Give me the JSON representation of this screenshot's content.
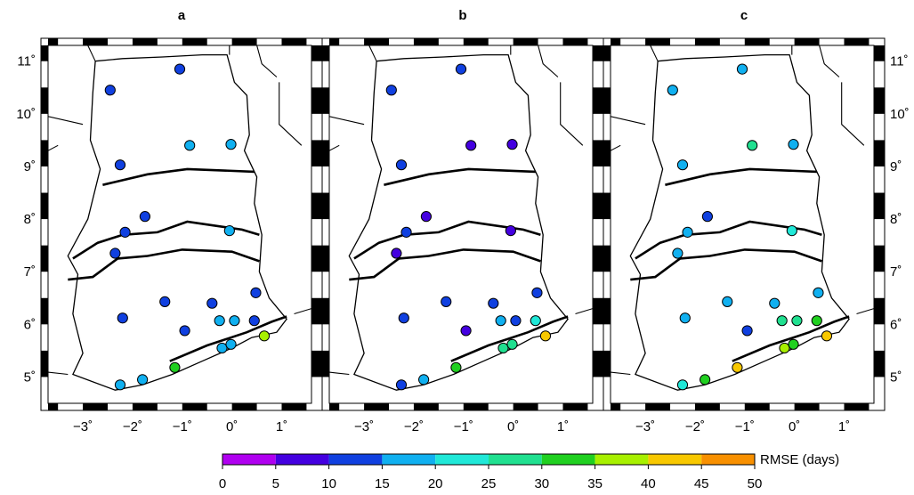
{
  "panels": [
    {
      "label": "a",
      "station_rmse_days": [
        12,
        12,
        17,
        16,
        12,
        11,
        12,
        12,
        16,
        12,
        13,
        12,
        13,
        12,
        17,
        17,
        14,
        30,
        19,
        19,
        39,
        17,
        19
      ]
    },
    {
      "label": "b",
      "station_rmse_days": [
        12,
        12,
        7,
        7,
        12,
        9,
        12,
        8,
        7,
        12,
        13,
        12,
        13,
        8,
        17,
        14,
        22,
        30,
        29,
        29,
        43,
        13,
        17
      ]
    },
    {
      "label": "c",
      "station_rmse_days": [
        17,
        17,
        25,
        19,
        17,
        12,
        17,
        17,
        23,
        17,
        17,
        17,
        17,
        12,
        27,
        27,
        30,
        42,
        35,
        34,
        42,
        21,
        33
      ]
    }
  ],
  "axes": {
    "x_ticks": [
      "−3˚",
      "−2˚",
      "−1˚",
      "0˚",
      "1˚"
    ],
    "y_ticks": [
      "11˚",
      "10˚",
      "9˚",
      "8˚",
      "7˚",
      "6˚",
      "5˚"
    ]
  },
  "colorbar": {
    "title": "RMSE (days)",
    "tick_labels": [
      "0",
      "5",
      "10",
      "15",
      "20",
      "25",
      "30",
      "35",
      "40",
      "45",
      "50"
    ],
    "colors": [
      "#b000f0",
      "#4400e0",
      "#1040e0",
      "#10b0f0",
      "#20e8d8",
      "#20e090",
      "#20d020",
      "#a8f000",
      "#f8c800",
      "#f89000",
      "#f04010"
    ]
  },
  "chart_data": {
    "type": "scatter",
    "x_label": "",
    "y_label": "",
    "xlim": [
      -3.7,
      1.6
    ],
    "ylim": [
      4.5,
      11.3
    ],
    "stations": [
      {
        "lon": -1.05,
        "lat": 10.85
      },
      {
        "lon": -2.45,
        "lat": 10.45
      },
      {
        "lon": -0.85,
        "lat": 9.4
      },
      {
        "lon": -0.02,
        "lat": 9.42
      },
      {
        "lon": -2.25,
        "lat": 9.03
      },
      {
        "lon": -1.75,
        "lat": 8.05
      },
      {
        "lon": -2.15,
        "lat": 7.75
      },
      {
        "lon": -2.35,
        "lat": 7.35
      },
      {
        "lon": -0.05,
        "lat": 7.78
      },
      {
        "lon": -1.35,
        "lat": 6.43
      },
      {
        "lon": -0.4,
        "lat": 6.4
      },
      {
        "lon": 0.48,
        "lat": 6.6
      },
      {
        "lon": -2.2,
        "lat": 6.12
      },
      {
        "lon": -0.95,
        "lat": 5.88
      },
      {
        "lon": -0.25,
        "lat": 6.07
      },
      {
        "lon": 0.05,
        "lat": 6.07
      },
      {
        "lon": 0.45,
        "lat": 6.07
      },
      {
        "lon": -1.15,
        "lat": 5.18
      },
      {
        "lon": -0.2,
        "lat": 5.55
      },
      {
        "lon": -0.02,
        "lat": 5.62
      },
      {
        "lon": 0.65,
        "lat": 5.78
      },
      {
        "lon": -2.25,
        "lat": 4.85
      },
      {
        "lon": -1.8,
        "lat": 4.95
      }
    ]
  }
}
